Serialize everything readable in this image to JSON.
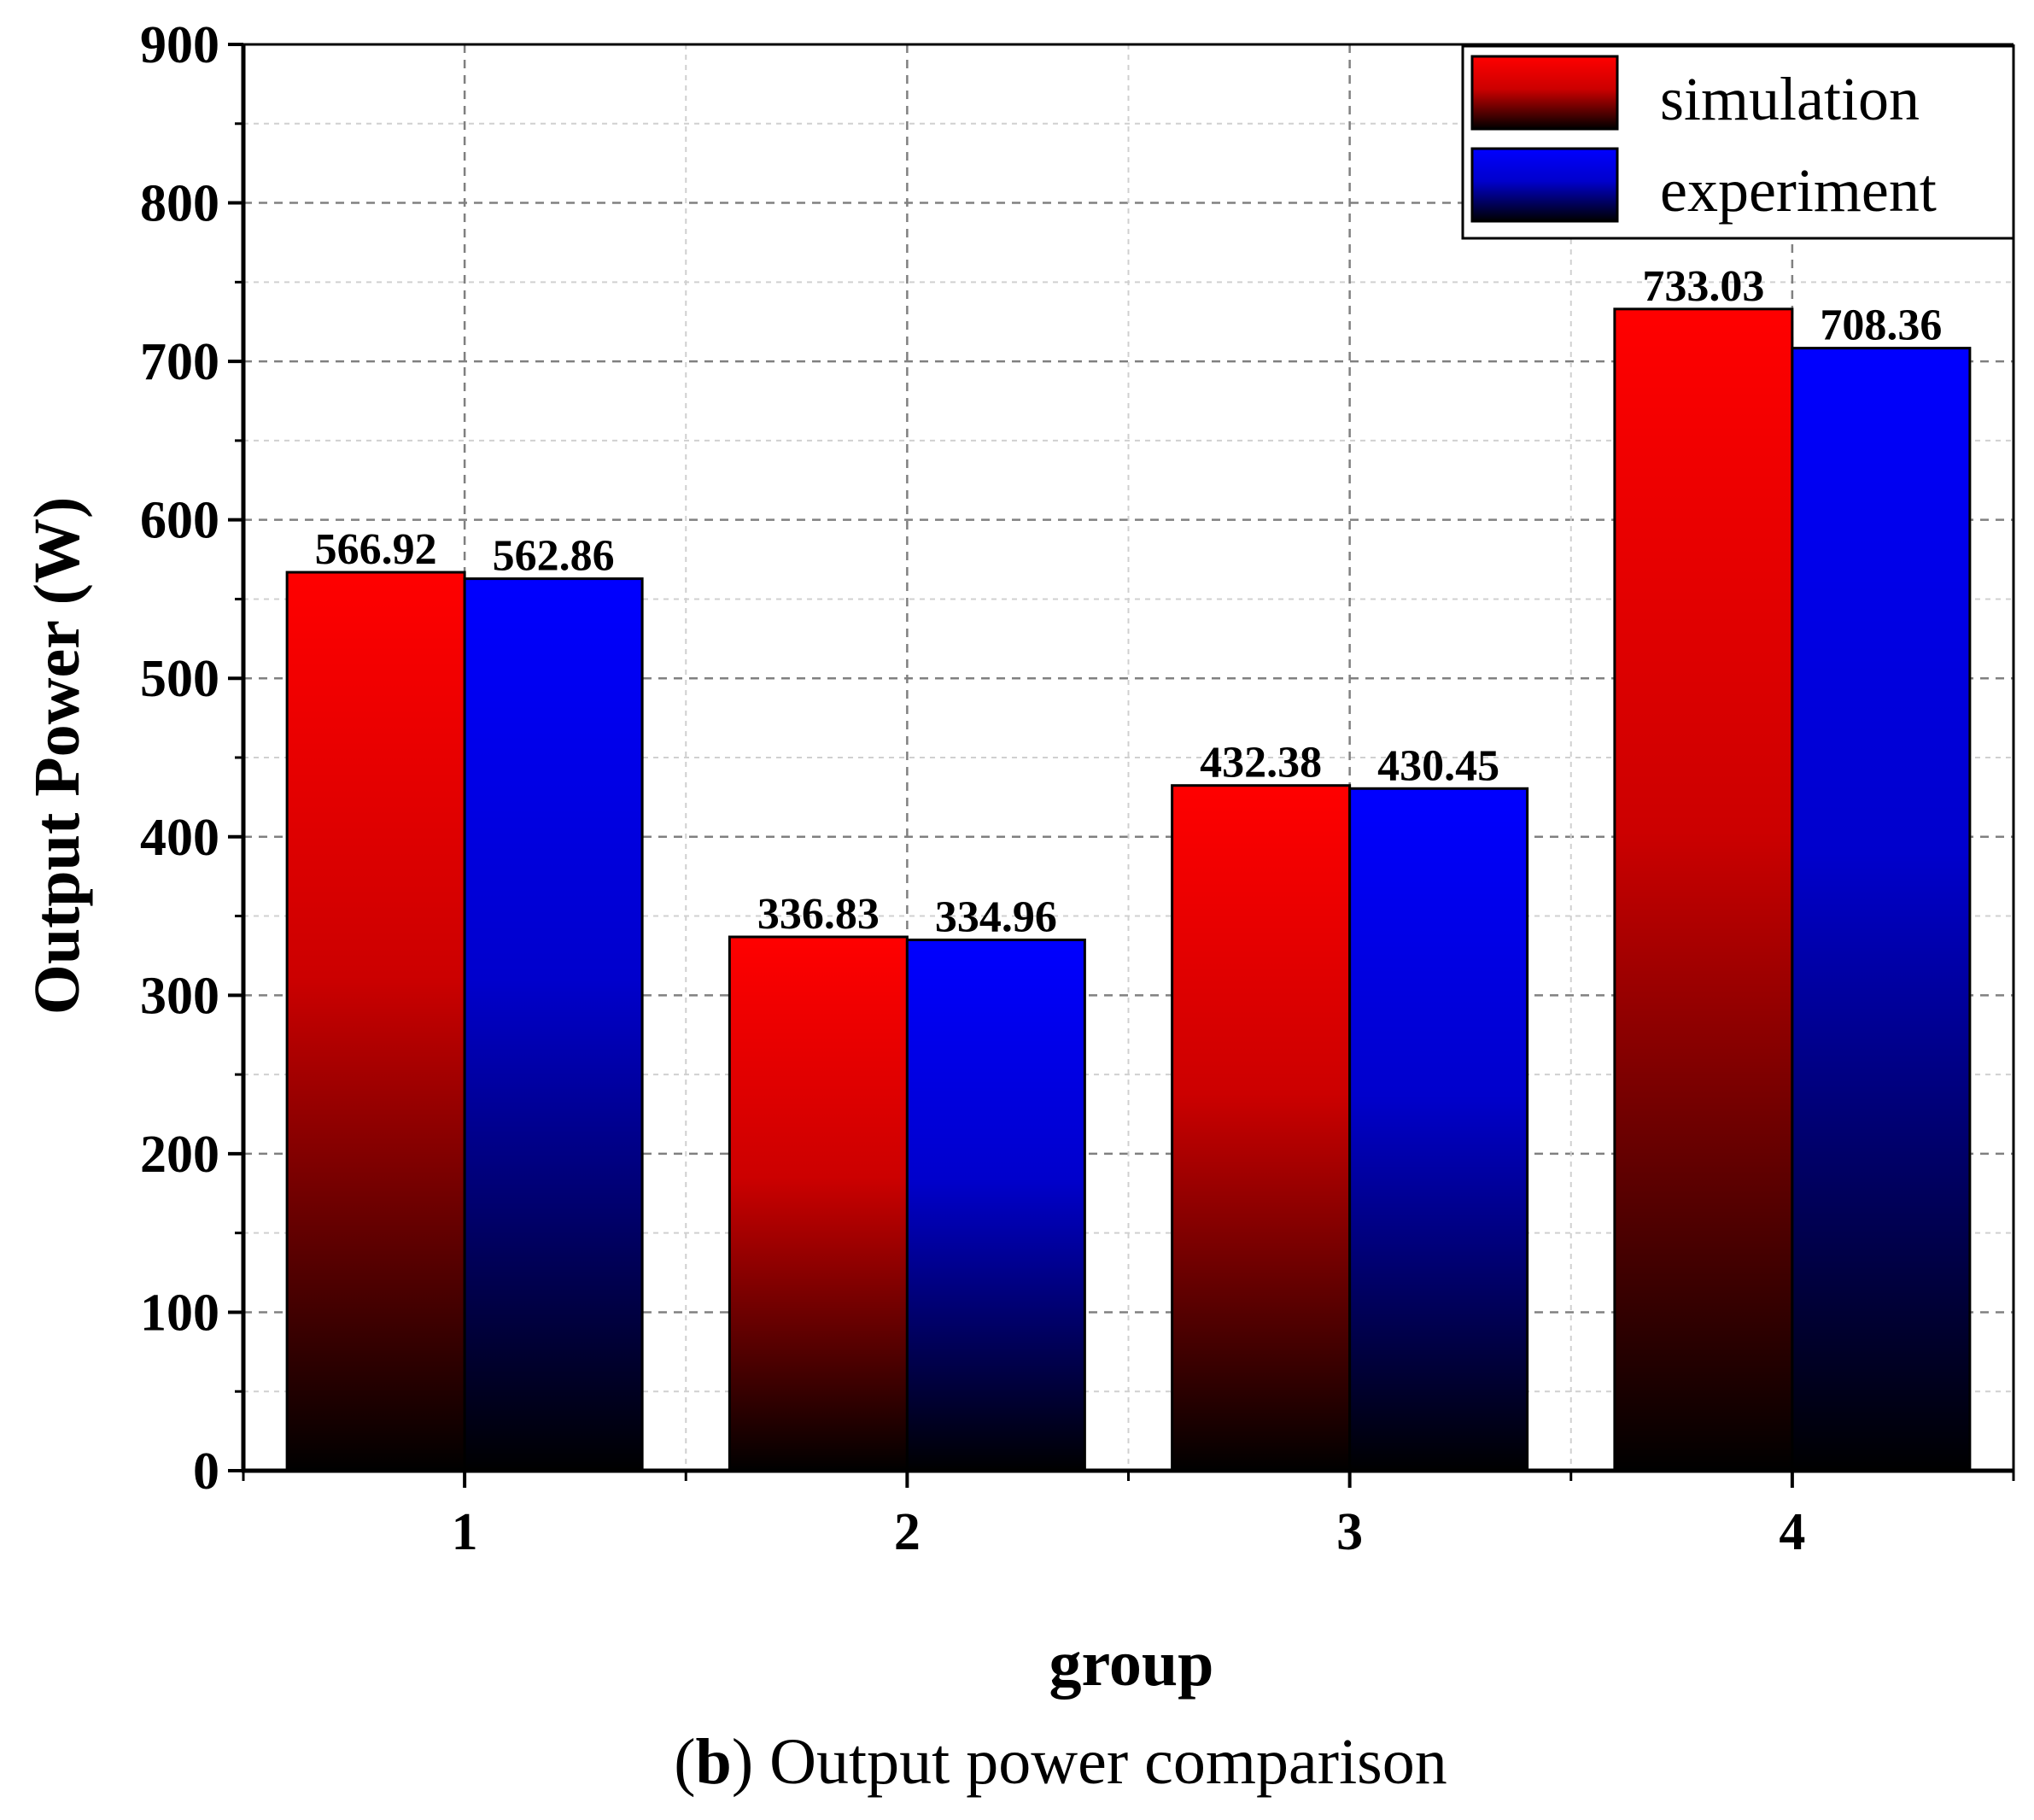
{
  "chart_data": {
    "type": "bar",
    "categories": [
      "1",
      "2",
      "3",
      "4"
    ],
    "series": [
      {
        "name": "simulation",
        "values": [
          566.92,
          336.83,
          432.38,
          733.03
        ],
        "labels": [
          "566.92",
          "336.83",
          "432.38",
          "733.03"
        ],
        "color": "#ff0000"
      },
      {
        "name": "experiment",
        "values": [
          562.86,
          334.96,
          430.45,
          708.36
        ],
        "labels": [
          "562.86",
          "334.96",
          "430.45",
          "708.36"
        ],
        "color": "#0000ff"
      }
    ],
    "xlabel": "group",
    "ylabel": "Output Power (W)",
    "ylim": [
      0,
      900
    ],
    "yticks": [
      "0",
      "100",
      "200",
      "300",
      "400",
      "500",
      "600",
      "700",
      "800",
      "900"
    ],
    "grid": true,
    "legend_position": "top-right"
  },
  "caption": {
    "label": "b",
    "text": "Output power comparison"
  }
}
